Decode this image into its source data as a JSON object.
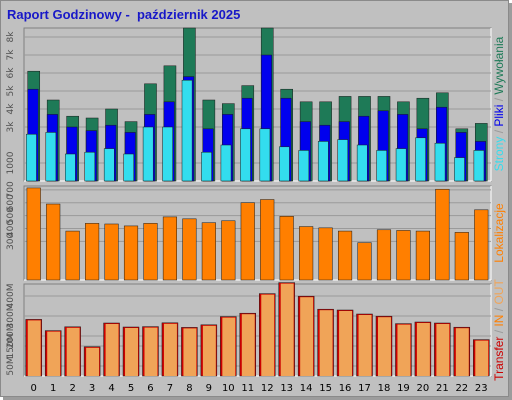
{
  "title": "Raport Godzinowy -  październik 2025",
  "colors": {
    "background": "#c0c0c0",
    "panel": "#c0c0c0",
    "grid": "#9a9a9a",
    "title": "#1818c8",
    "strony": "#1e7a57",
    "pliki": "#0000ee",
    "wywolania": "#33ddee",
    "lokalizacje": "#ff7f00",
    "transfer": "#cc0000",
    "transfer_fill": "#f0a458"
  },
  "chart_data": [
    {
      "type": "bar",
      "name": "top",
      "categories": [
        "0",
        "1",
        "2",
        "3",
        "4",
        "5",
        "6",
        "7",
        "8",
        "9",
        "10",
        "11",
        "12",
        "13",
        "14",
        "15",
        "16",
        "17",
        "18",
        "19",
        "20",
        "21",
        "22",
        "23"
      ],
      "series": [
        {
          "name": "Strony",
          "values": [
            6100,
            4500,
            3600,
            3500,
            4000,
            3300,
            5400,
            6400,
            8500,
            4500,
            4300,
            5300,
            8500,
            5100,
            4400,
            4400,
            4700,
            4700,
            4700,
            4400,
            4600,
            4900,
            2900,
            3200
          ]
        },
        {
          "name": "Pliki",
          "values": [
            5100,
            3700,
            3000,
            2800,
            3100,
            2700,
            3700,
            4400,
            5800,
            2900,
            3700,
            4600,
            7000,
            4600,
            3300,
            3100,
            3300,
            3600,
            3900,
            3700,
            2900,
            4100,
            2700,
            2200
          ]
        },
        {
          "name": "Wywołania",
          "values": [
            2600,
            2700,
            1500,
            1600,
            1800,
            1500,
            3000,
            3000,
            5600,
            1600,
            2000,
            2900,
            2900,
            1900,
            1700,
            2200,
            2300,
            2000,
            1700,
            1800,
            2400,
            2100,
            1300,
            1700
          ]
        }
      ],
      "ylim": [
        0,
        8500
      ],
      "yticks": [
        "1000",
        "3k",
        "4k",
        "5k",
        "6k",
        "7k",
        "8k"
      ],
      "ytick_values": [
        1000,
        3000,
        4000,
        5000,
        6000,
        7000,
        8000
      ],
      "side_label": [
        "Strony",
        " / ",
        "Pliki",
        " / ",
        "Wywołania"
      ]
    },
    {
      "type": "bar",
      "name": "middle",
      "categories": [
        "0",
        "1",
        "2",
        "3",
        "4",
        "5",
        "6",
        "7",
        "8",
        "9",
        "10",
        "11",
        "12",
        "13",
        "14",
        "15",
        "16",
        "17",
        "18",
        "19",
        "20",
        "21",
        "22",
        "23"
      ],
      "series": [
        {
          "name": "Lokalizacje",
          "values": [
            715,
            590,
            380,
            440,
            435,
            420,
            440,
            490,
            475,
            445,
            460,
            600,
            625,
            495,
            415,
            405,
            380,
            290,
            390,
            385,
            380,
            705,
            370,
            545
          ]
        }
      ],
      "ylim": [
        0,
        730
      ],
      "yticks": [
        "300",
        "400",
        "500",
        "600",
        "700"
      ],
      "ytick_values": [
        300,
        400,
        500,
        600,
        700
      ],
      "side_label": [
        "Lokalizacje"
      ]
    },
    {
      "type": "bar",
      "name": "bottom",
      "categories": [
        "0",
        "1",
        "2",
        "3",
        "4",
        "5",
        "6",
        "7",
        "8",
        "9",
        "10",
        "11",
        "12",
        "13",
        "14",
        "15",
        "16",
        "17",
        "18",
        "19",
        "20",
        "21",
        "22",
        "23"
      ],
      "series": [
        {
          "name": "Transfer",
          "values": [
            283,
            227,
            246,
            146,
            265,
            245,
            247,
            266,
            243,
            256,
            297,
            314,
            412,
            467,
            399,
            334,
            330,
            310,
            299,
            262,
            270,
            265,
            244,
            182
          ]
        }
      ],
      "ylim": [
        0,
        460
      ],
      "yticks": [
        "50M",
        "150M",
        "200M",
        "300M",
        "400M"
      ],
      "ytick_values": [
        50,
        150,
        200,
        300,
        400
      ],
      "side_label": [
        "Transfer",
        " / ",
        "IN",
        " / ",
        "OUT"
      ]
    }
  ]
}
